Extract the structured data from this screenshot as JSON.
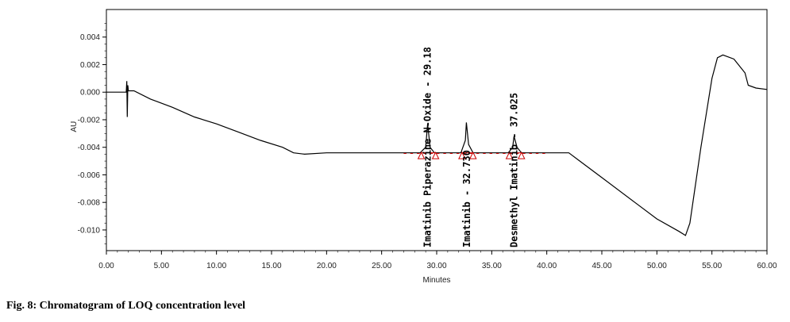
{
  "caption": "Fig. 8: Chromatogram of LOQ concentration level",
  "chart_data": {
    "type": "line",
    "title": "",
    "xlabel": "Minutes",
    "ylabel": "AU",
    "xlim": [
      0,
      60
    ],
    "ylim": [
      -0.0115,
      0.006
    ],
    "x_ticks": [
      0,
      5,
      10,
      15,
      20,
      25,
      30,
      35,
      40,
      45,
      50,
      55,
      60
    ],
    "x_tick_labels": [
      "0.00",
      "5.00",
      "10.00",
      "15.00",
      "20.00",
      "25.00",
      "30.00",
      "35.00",
      "40.00",
      "45.00",
      "50.00",
      "55.00",
      "60.00"
    ],
    "y_ticks": [
      0.004,
      0.002,
      0.0,
      -0.002,
      -0.004,
      -0.006,
      -0.008,
      -0.01
    ],
    "y_tick_labels": [
      "0.004",
      "0.002",
      "0.000",
      "-0.002",
      "-0.004",
      "-0.006",
      "-0.008",
      "-0.010"
    ],
    "grid": false,
    "line_color": "#000000",
    "marker_color": "#cc0000",
    "series": [
      {
        "points": [
          [
            0,
            0.0
          ],
          [
            1.5,
            0.0
          ],
          [
            1.8,
            0.0
          ],
          [
            1.85,
            0.0008
          ],
          [
            1.9,
            -0.0018
          ],
          [
            1.95,
            0.0005
          ],
          [
            2.0,
            0.0001
          ],
          [
            2.5,
            0.0001
          ],
          [
            4,
            -0.0005
          ],
          [
            6,
            -0.0011
          ],
          [
            8,
            -0.0018
          ],
          [
            10,
            -0.0023
          ],
          [
            12,
            -0.0029
          ],
          [
            14,
            -0.0035
          ],
          [
            16,
            -0.004
          ],
          [
            17,
            -0.0044
          ],
          [
            18,
            -0.0045
          ],
          [
            20,
            -0.0044
          ],
          [
            25,
            -0.0044
          ],
          [
            28.5,
            -0.0044
          ],
          [
            29.0,
            -0.004
          ],
          [
            29.18,
            -0.0023
          ],
          [
            29.4,
            -0.004
          ],
          [
            29.8,
            -0.0044
          ],
          [
            32.2,
            -0.0044
          ],
          [
            32.6,
            -0.0035
          ],
          [
            32.7,
            -0.0022
          ],
          [
            32.9,
            -0.0038
          ],
          [
            33.3,
            -0.0044
          ],
          [
            36.5,
            -0.0044
          ],
          [
            36.9,
            -0.004
          ],
          [
            37.025,
            -0.0032
          ],
          [
            37.3,
            -0.004
          ],
          [
            37.7,
            -0.0044
          ],
          [
            40,
            -0.0044
          ],
          [
            42,
            -0.0044
          ],
          [
            43,
            -0.005
          ],
          [
            45,
            -0.0062
          ],
          [
            48,
            -0.008
          ],
          [
            50,
            -0.0092
          ],
          [
            52,
            -0.0101
          ],
          [
            52.6,
            -0.0104
          ],
          [
            53,
            -0.0095
          ],
          [
            54,
            -0.004
          ],
          [
            55,
            0.001
          ],
          [
            55.5,
            0.0025
          ],
          [
            56,
            0.0027
          ],
          [
            57,
            0.0024
          ],
          [
            58,
            0.0014
          ],
          [
            58.3,
            0.0005
          ],
          [
            59,
            0.0003
          ],
          [
            60,
            0.0002
          ]
        ]
      }
    ],
    "peaks": [
      {
        "label": "Imatinib Piperazine N-Oxide - 29.18",
        "rt": 29.18,
        "apex": -0.0023
      },
      {
        "label": "Imatinib - 32.730",
        "rt": 32.73,
        "apex": -0.0022
      },
      {
        "label": "Desmethyl Imatinib - 37.025",
        "rt": 37.025,
        "apex": -0.0032
      }
    ],
    "baseline_markers": [
      {
        "x": 28.6,
        "y": -0.0046
      },
      {
        "x": 29.9,
        "y": -0.0046
      },
      {
        "x": 32.3,
        "y": -0.0046
      },
      {
        "x": 33.3,
        "y": -0.0046
      },
      {
        "x": 36.6,
        "y": -0.0046
      },
      {
        "x": 37.7,
        "y": -0.0046
      }
    ]
  }
}
